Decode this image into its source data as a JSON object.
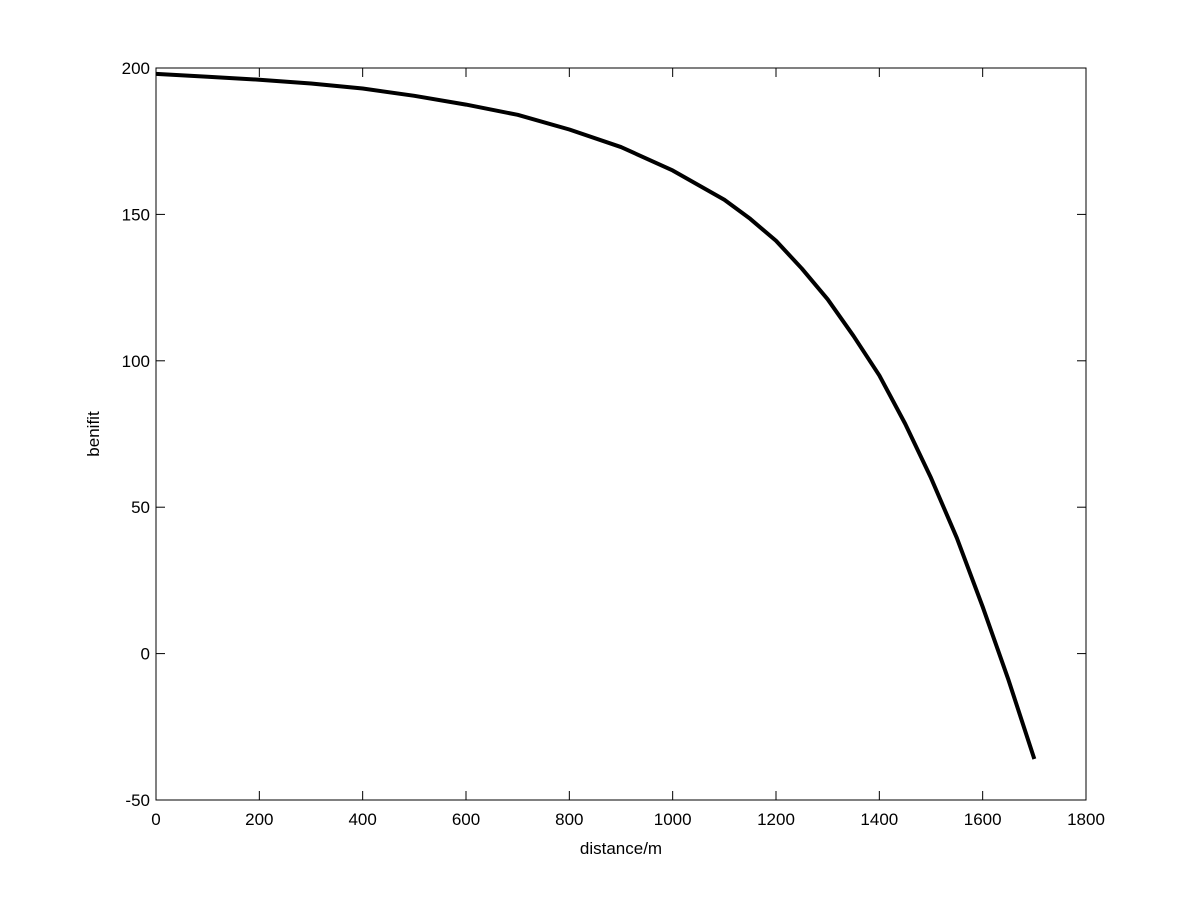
{
  "chart_data": {
    "type": "line",
    "xlabel": "distance/m",
    "ylabel": "benifit",
    "x": [
      0,
      100,
      200,
      300,
      400,
      500,
      600,
      700,
      800,
      900,
      1000,
      1100,
      1150,
      1200,
      1250,
      1300,
      1350,
      1400,
      1450,
      1500,
      1550,
      1600,
      1650,
      1700
    ],
    "series": [
      {
        "color": "#000000",
        "values": [
          198,
          197,
          196,
          194.7,
          193,
          190.5,
          187.5,
          184,
          179,
          173,
          165,
          155,
          148.5,
          141,
          131.5,
          121,
          108.5,
          95,
          78.5,
          60,
          39.5,
          16,
          -9,
          -36
        ]
      }
    ],
    "xlim": [
      0,
      1800
    ],
    "xticks": [
      0,
      200,
      400,
      600,
      800,
      1000,
      1200,
      1400,
      1600,
      1800
    ],
    "ylim": [
      -50,
      200
    ],
    "yticks": [
      -50,
      0,
      50,
      100,
      150,
      200
    ],
    "grid": false
  }
}
